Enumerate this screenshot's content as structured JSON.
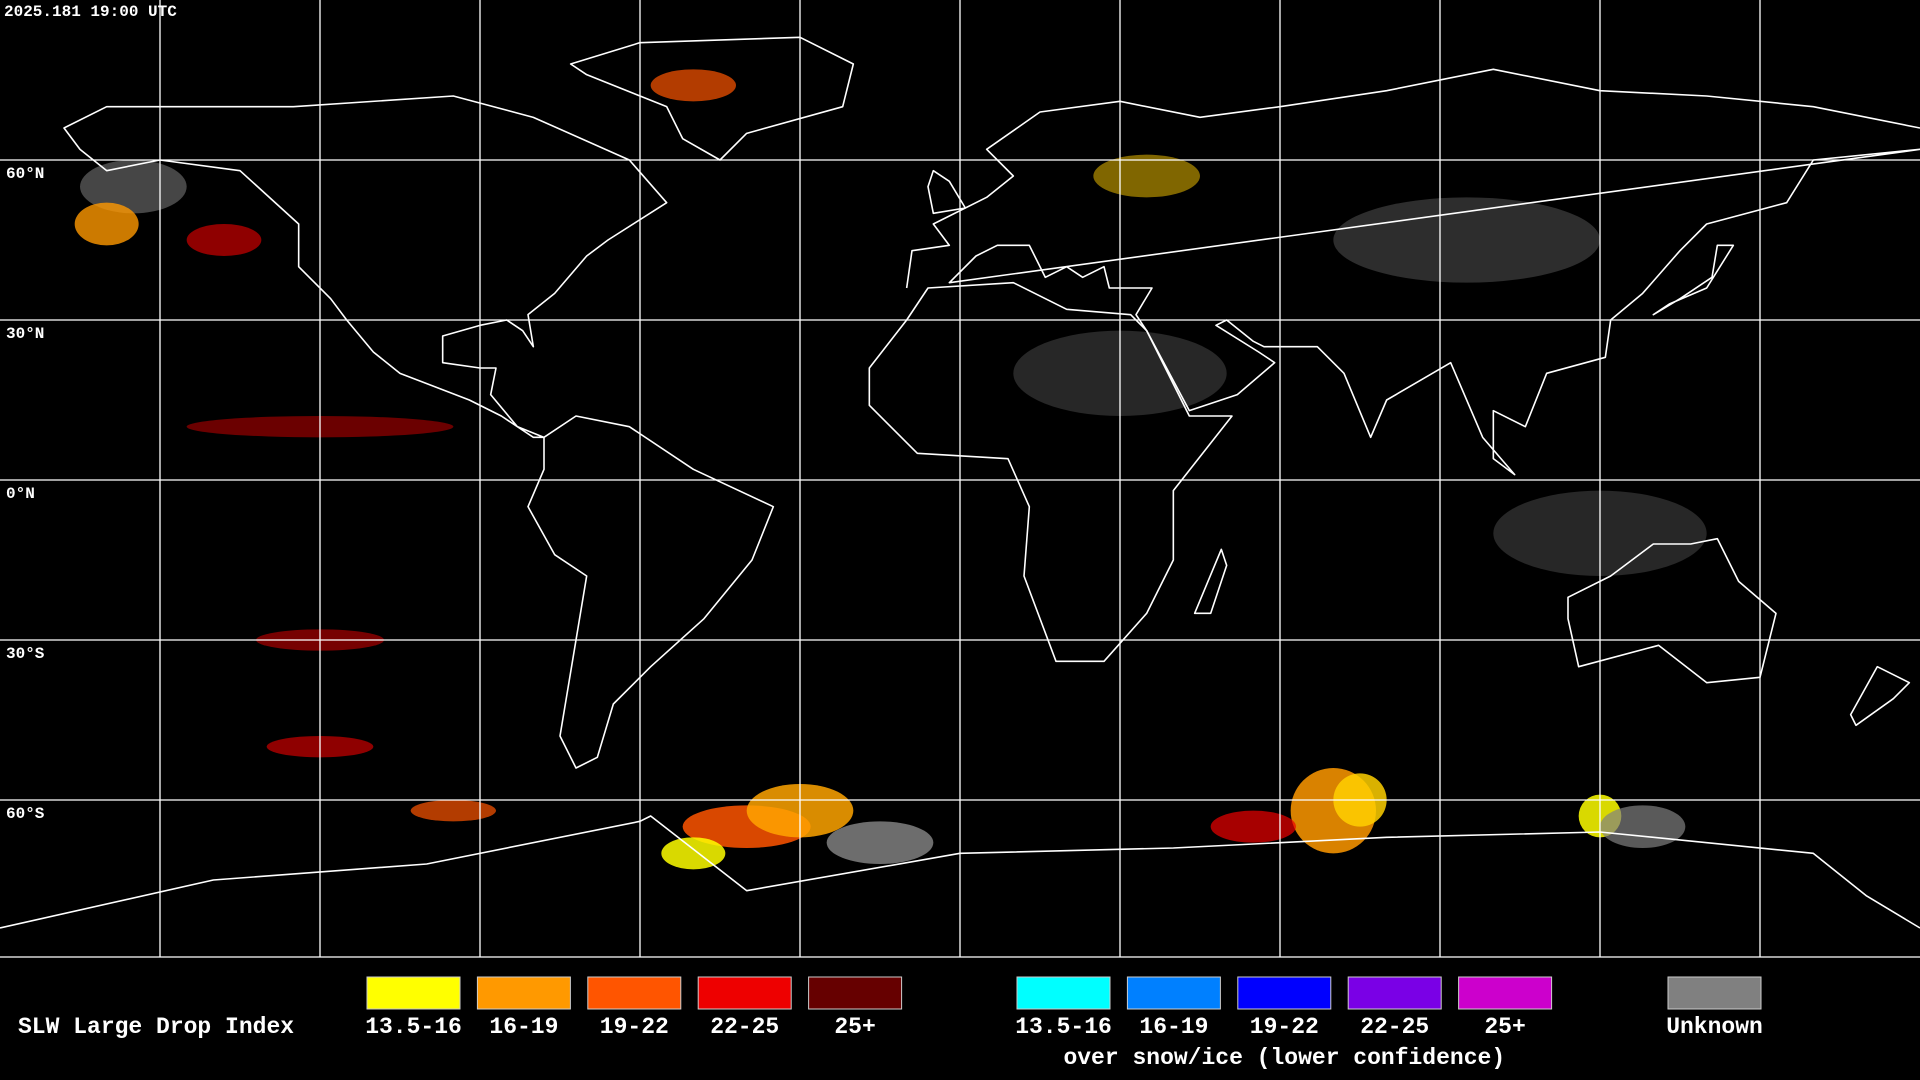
{
  "header": {
    "timestamp": "2025.181 19:00 UTC"
  },
  "map": {
    "latitude_labels": [
      "60°N",
      "30°N",
      "0°N",
      "30°S",
      "60°S"
    ]
  },
  "legend": {
    "title": "SLW Large Drop Index",
    "groups": [
      {
        "items": [
          {
            "label": "13.5-16",
            "color": "#ffff00"
          },
          {
            "label": "16-19",
            "color": "#ff9900"
          },
          {
            "label": "19-22",
            "color": "#ff5500"
          },
          {
            "label": "22-25",
            "color": "#ee0000"
          },
          {
            "label": "25+",
            "color": "#660000"
          }
        ]
      },
      {
        "items": [
          {
            "label": "13.5-16",
            "color": "#00ffff"
          },
          {
            "label": "16-19",
            "color": "#0080ff"
          },
          {
            "label": "19-22",
            "color": "#0000ff"
          },
          {
            "label": "22-25",
            "color": "#7a00e6"
          },
          {
            "label": "25+",
            "color": "#cc00cc"
          }
        ],
        "caption": "over snow/ice (lower confidence)"
      }
    ],
    "unknown": {
      "label": "Unknown",
      "color": "#808080"
    }
  }
}
